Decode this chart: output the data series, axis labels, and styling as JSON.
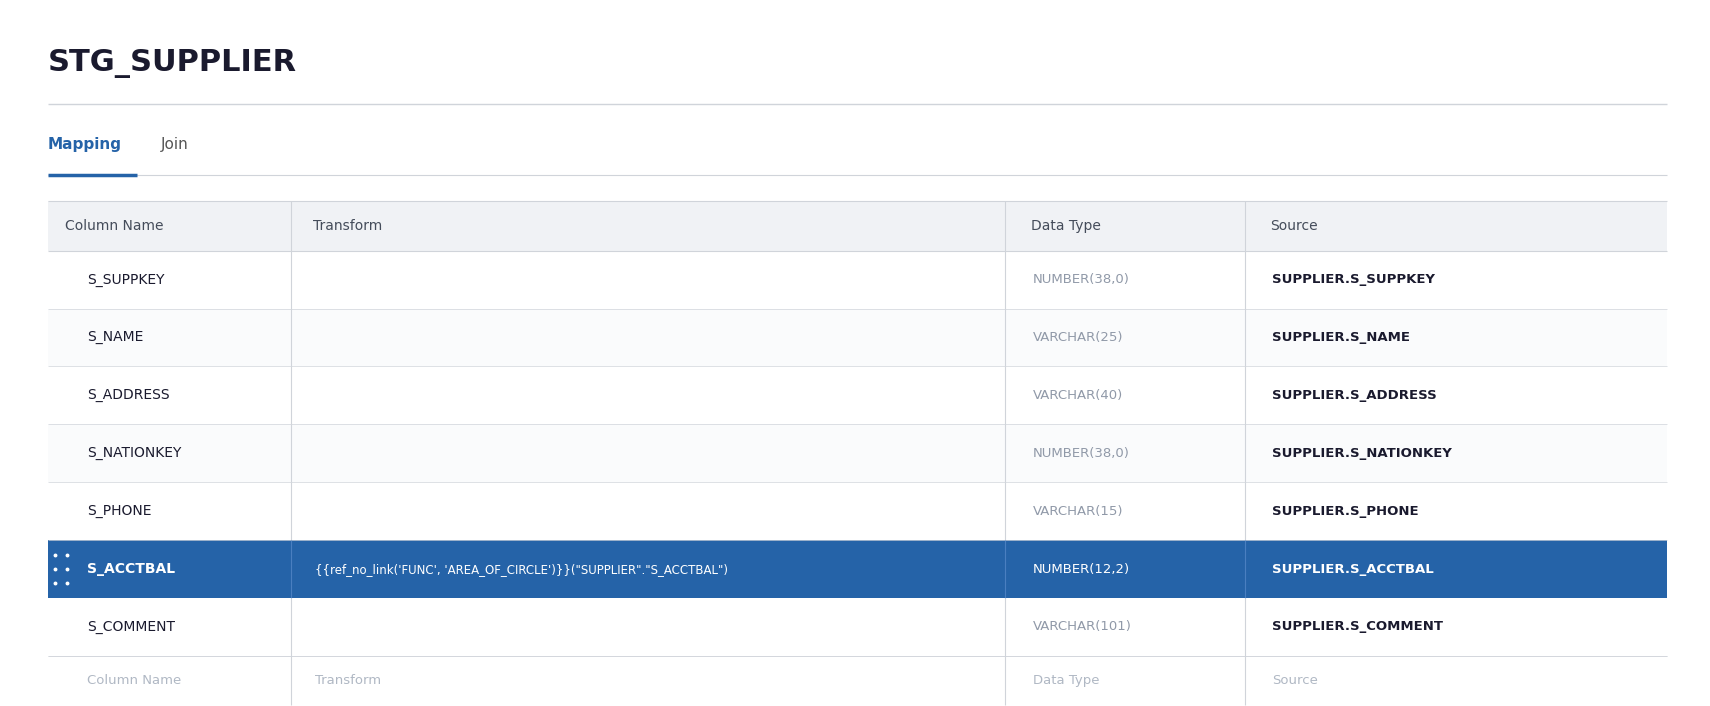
{
  "title": "STG_SUPPLIER",
  "tabs": [
    "Mapping",
    "Join"
  ],
  "active_tab": "Mapping",
  "headers": [
    "Column Name",
    "Transform",
    "Data Type",
    "Source"
  ],
  "rows": [
    {
      "name": "S_SUPPKEY",
      "transform": "",
      "dtype": "NUMBER(38,0)",
      "source": "SUPPLIER.S_SUPPKEY",
      "highlighted": false
    },
    {
      "name": "S_NAME",
      "transform": "",
      "dtype": "VARCHAR(25)",
      "source": "SUPPLIER.S_NAME",
      "highlighted": false
    },
    {
      "name": "S_ADDRESS",
      "transform": "",
      "dtype": "VARCHAR(40)",
      "source": "SUPPLIER.S_ADDRESS",
      "highlighted": false
    },
    {
      "name": "S_NATIONKEY",
      "transform": "",
      "dtype": "NUMBER(38,0)",
      "source": "SUPPLIER.S_NATIONKEY",
      "highlighted": false
    },
    {
      "name": "S_PHONE",
      "transform": "",
      "dtype": "VARCHAR(15)",
      "source": "SUPPLIER.S_PHONE",
      "highlighted": false
    },
    {
      "name": "S_ACCTBAL",
      "transform": "{{ref_no_link('FUNC', 'AREA_OF_CIRCLE')}}(\"SUPPLIER\".\"S_ACCTBAL\")",
      "dtype": "NUMBER(12,2)",
      "source": "SUPPLIER.S_ACCTBAL",
      "highlighted": true
    },
    {
      "name": "S_COMMENT",
      "transform": "",
      "dtype": "VARCHAR(101)",
      "source": "SUPPLIER.S_COMMENT",
      "highlighted": false
    }
  ],
  "footer_row": {
    "name": "Column Name",
    "transform": "Transform",
    "dtype": "Data Type",
    "source": "Source"
  },
  "bg_color": "#ffffff",
  "header_row_bg": "#f0f2f5",
  "highlight_color": "#2563a8",
  "highlight_text_color": "#ffffff",
  "normal_text_color": "#1a1a2e",
  "dtype_text_color": "#9099a8",
  "source_text_color": "#1a1a2e",
  "footer_text_color": "#b0b8c4",
  "tab_active_color": "#2563a8",
  "tab_inactive_color": "#555555",
  "title_color": "#1a1a2e",
  "separator_color": "#d0d4da",
  "header_text_color": "#444c5a"
}
